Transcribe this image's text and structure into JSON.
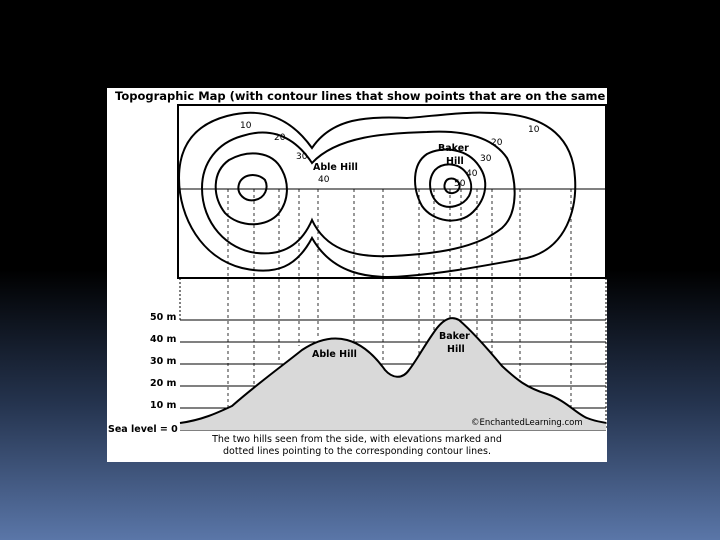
{
  "figure": {
    "title": "Topographic Map (with contour lines that show points that are on the same level)",
    "map_labels": {
      "able_hill": "Able Hill",
      "baker_hill_line1": "Baker",
      "baker_hill_line2": "Hill",
      "contour_10_left": "10",
      "contour_20_left": "20",
      "contour_30_left": "30",
      "contour_40_left": "40",
      "contour_10_right": "10",
      "contour_20_right": "20",
      "contour_30_right": "30",
      "contour_40_right": "40",
      "contour_50_right": "50"
    },
    "profile": {
      "elevation_labels": [
        "50 m",
        "40 m",
        "30 m",
        "20 m",
        "10 m",
        "Sea level = 0"
      ],
      "able_hill": "Able Hill",
      "baker_hill_line1": "Baker",
      "baker_hill_line2": "Hill"
    },
    "credit": "©EnchantedLearning.com",
    "caption": "The two hills seen from the side, with elevations marked and dotted lines pointing to the corresponding contour lines."
  }
}
